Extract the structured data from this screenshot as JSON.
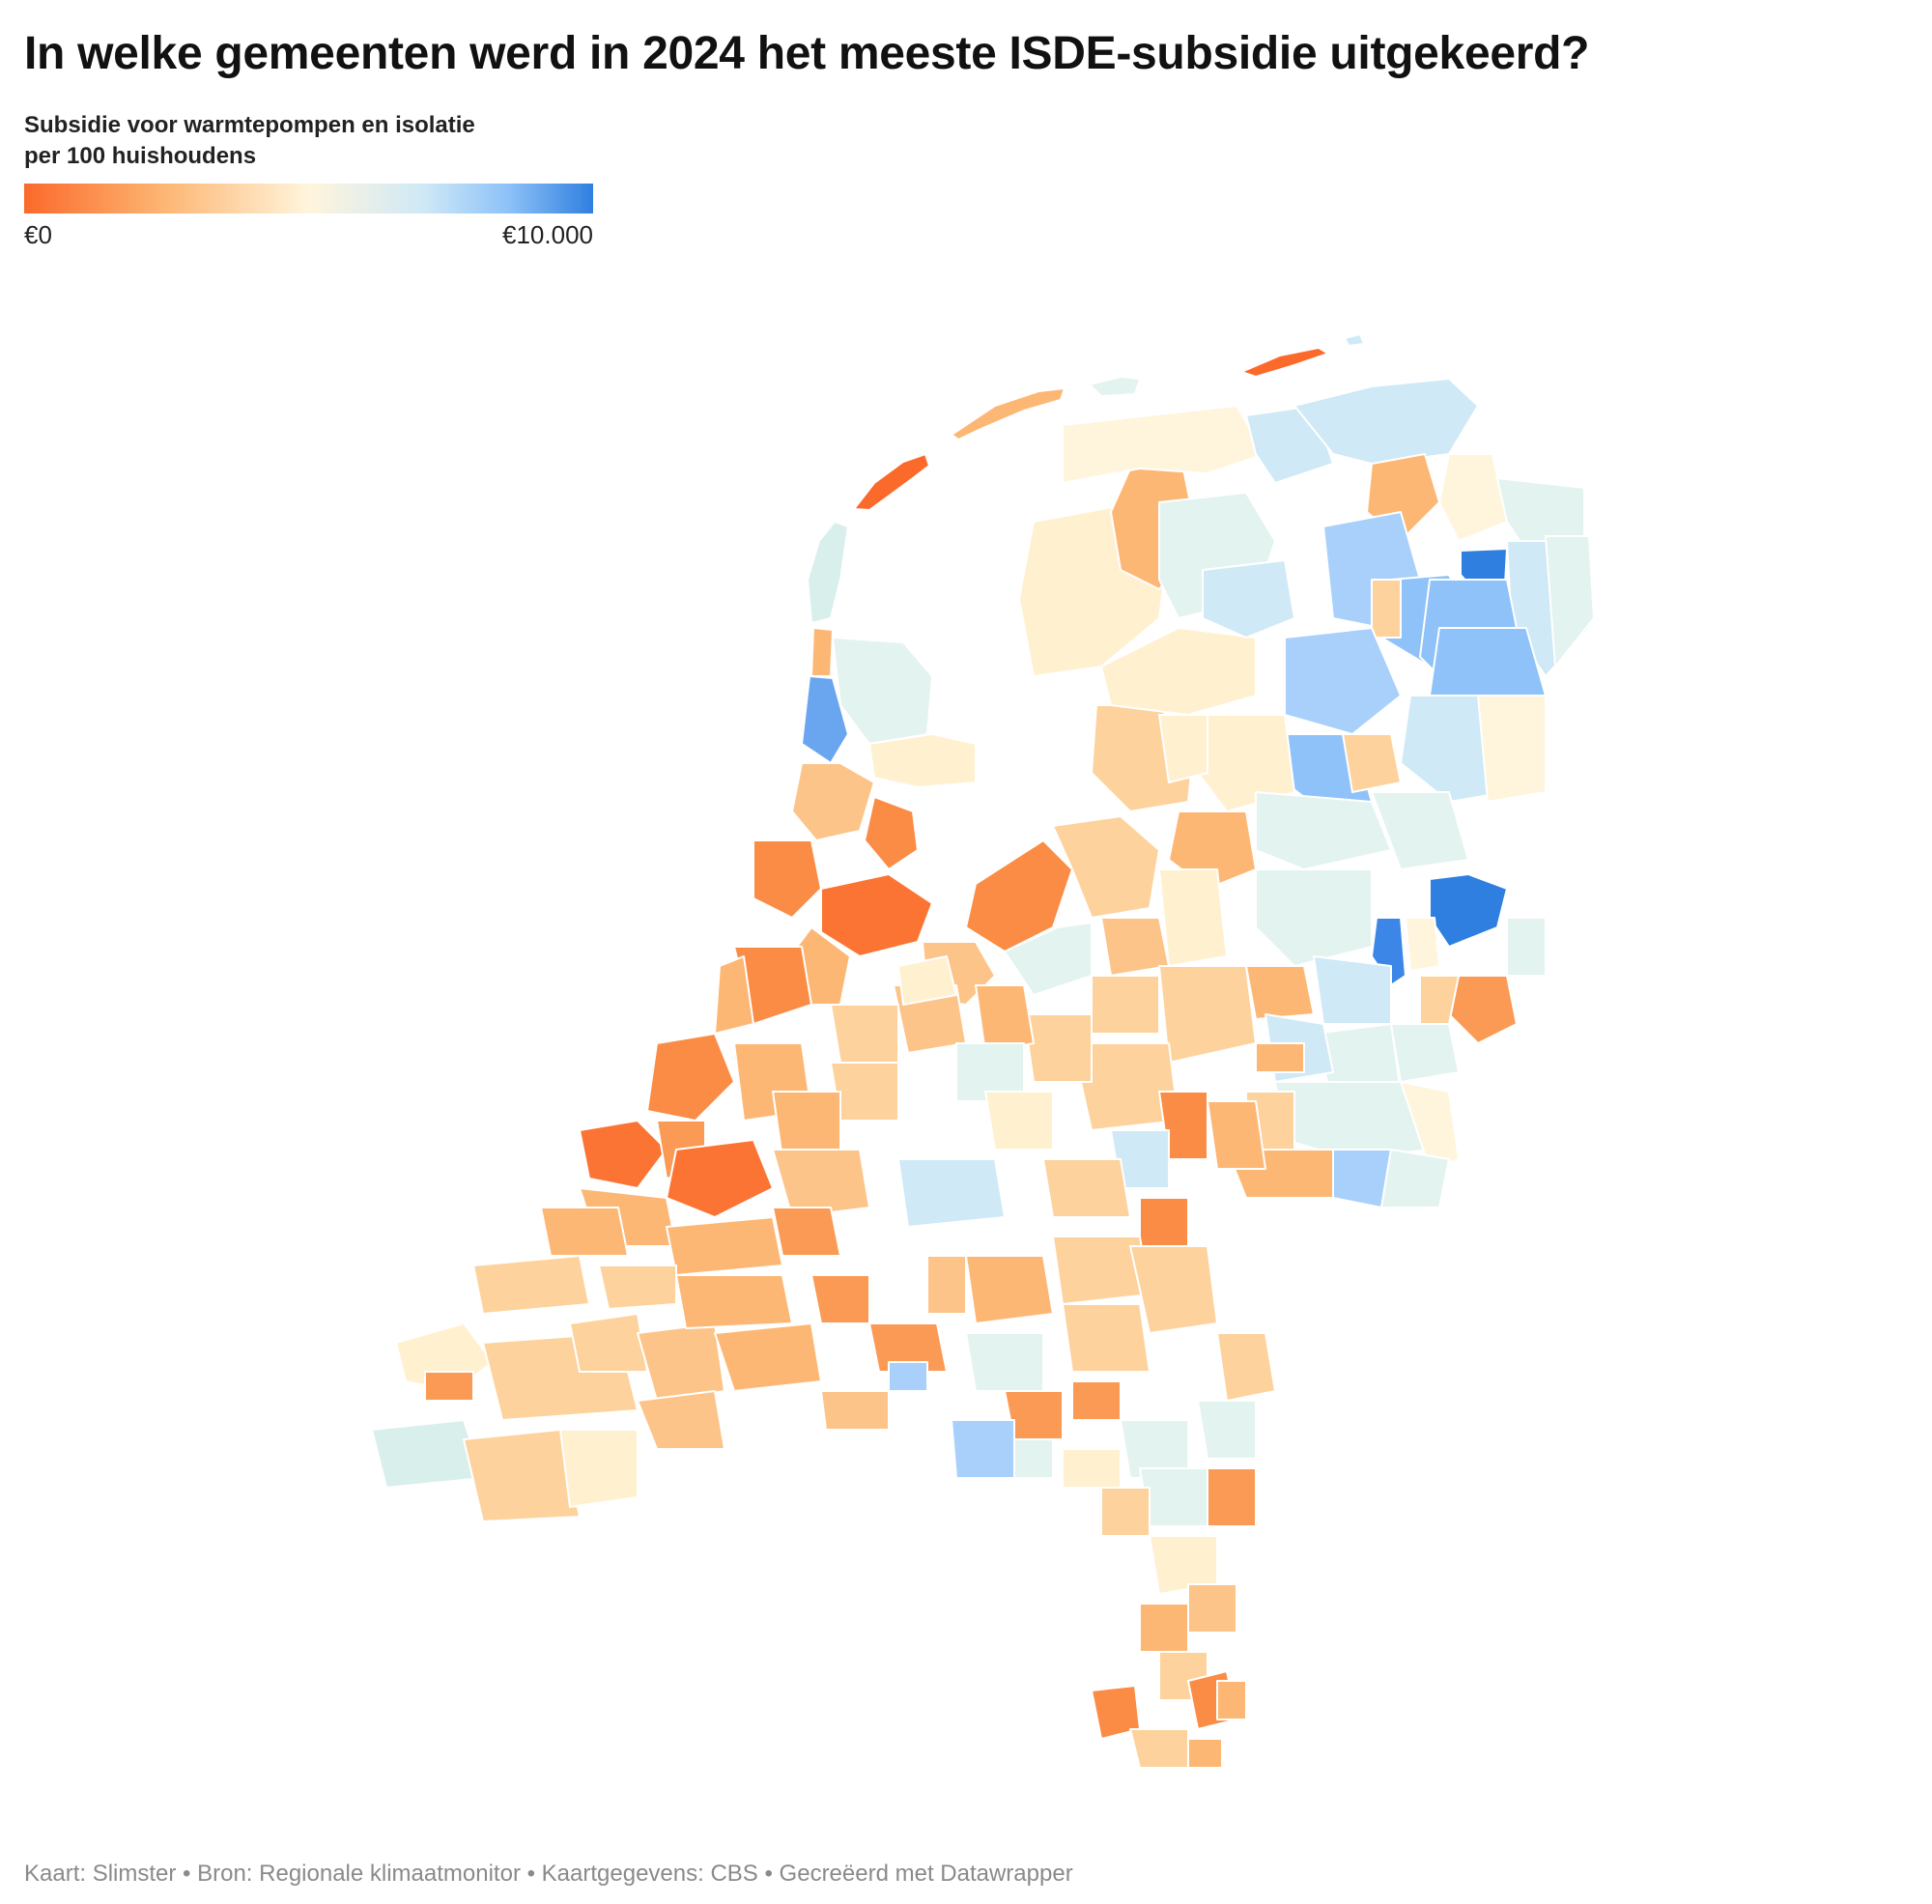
{
  "header": {
    "title": "In welke gemeenten werd in 2024 het meeste ISDE-subsidie uitgekeerd?"
  },
  "legend": {
    "title_line1": "Subsidie voor warmtepompen en isolatie",
    "title_line2": "per 100 huishoudens",
    "min_label": "€0",
    "max_label": "€10.000",
    "colors": {
      "low": "#fb6a2b",
      "mid_low": "#fdb775",
      "mid": "#fff5dc",
      "mid_high": "#cfe9f6",
      "high": "#2f7fe0"
    }
  },
  "footer": {
    "credits": "Kaart: Slimster • Bron: Regionale klimaatmonitor • Kaartgegevens: CBS • Gecreëerd met Datawrapper"
  }
}
